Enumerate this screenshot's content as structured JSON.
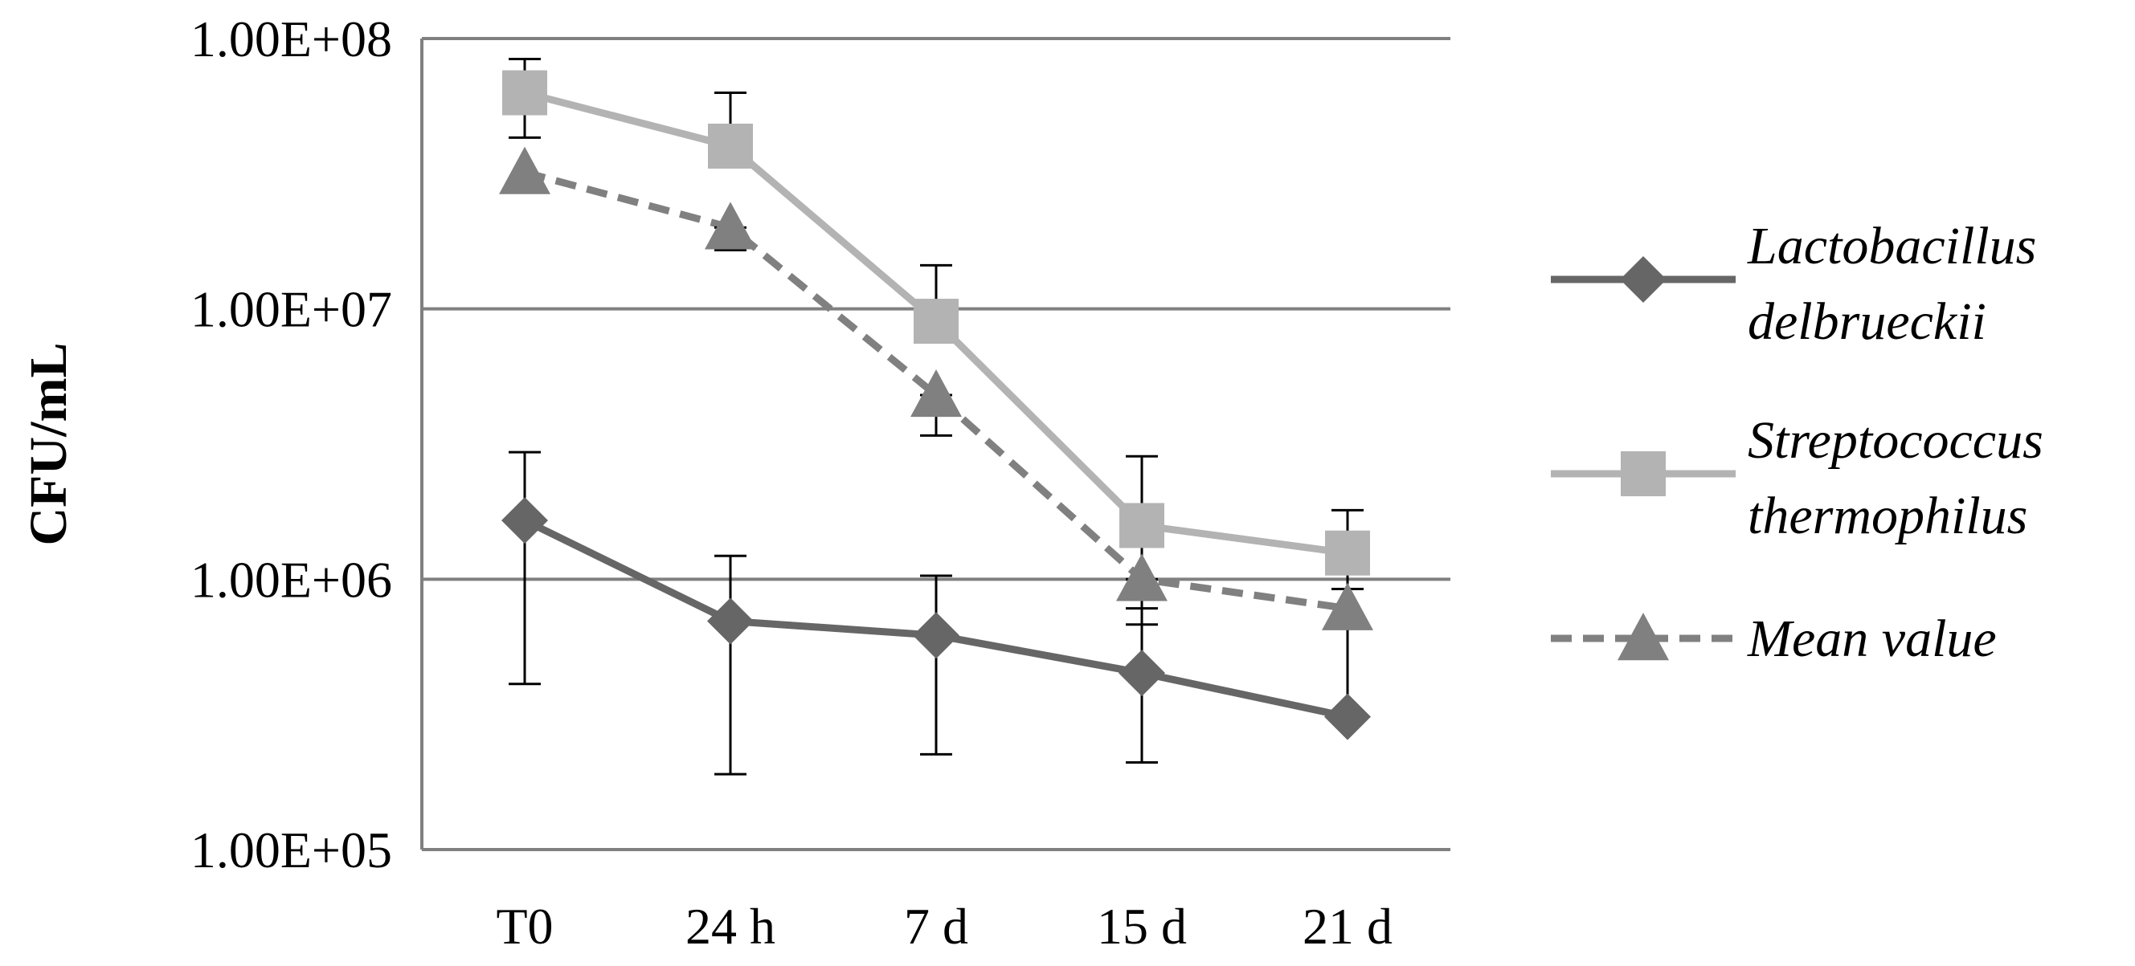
{
  "chart_data": {
    "type": "line",
    "title": "",
    "xlabel": "",
    "ylabel": "CFU/mL",
    "y_scale": "log",
    "ylim": [
      100000,
      100000000
    ],
    "y_ticks": [
      100000,
      1000000,
      10000000,
      100000000
    ],
    "y_tick_labels": [
      "1.00E+05",
      "1.00E+06",
      "1.00E+07",
      "1.00E+08"
    ],
    "grid": "horizontal",
    "legend_position": "right",
    "categories": [
      "T0",
      "24 h",
      "7 d",
      "15 d",
      "21 d"
    ],
    "series": [
      {
        "name": "Lactobacillus delbrueckii",
        "name_lines": [
          "Lactobacillus",
          "delbrueckii"
        ],
        "values": [
          1650000,
          700000,
          620000,
          450000,
          310000
        ],
        "error_upper": [
          2950000,
          1220000,
          1030000,
          780000,
          660000
        ],
        "error_lower": [
          410000,
          190000,
          225000,
          210000,
          310000
        ],
        "color": "#666666",
        "marker": "diamond",
        "dash": "solid"
      },
      {
        "name": "Streptococcus thermophilus",
        "name_lines": [
          "Streptococcus",
          "thermophilus"
        ],
        "values": [
          63000000,
          40000000,
          9000000,
          1580000,
          1250000
        ],
        "error_upper": [
          84000000,
          63000000,
          14500000,
          2850000,
          1800000
        ],
        "error_lower": [
          43000000,
          40000000,
          9000000,
          1000000,
          920000
        ],
        "color": "#b3b3b3",
        "marker": "square",
        "dash": "solid"
      },
      {
        "name": "Mean value",
        "name_lines": [
          "Mean value"
        ],
        "values": [
          32000000,
          20000000,
          4800000,
          1000000,
          780000
        ],
        "error_upper": [
          32000000,
          20000000,
          4800000,
          1000000,
          780000
        ],
        "error_lower": [
          32000000,
          16500000,
          3400000,
          680000,
          780000
        ],
        "color": "#808080",
        "marker": "triangle",
        "dash": "dashed"
      }
    ]
  }
}
